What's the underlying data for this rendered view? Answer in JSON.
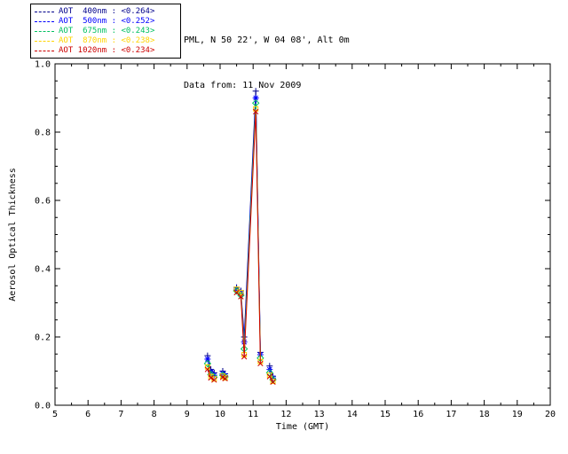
{
  "header": {
    "line1": "PML, N 50 22', W 04 08', Alt 0m",
    "line2": "Data from: 11 Nov 2009"
  },
  "chart_data": {
    "type": "line",
    "title": "",
    "xlabel": "Time (GMT)",
    "ylabel": "Aerosol Optical Thickness",
    "xlim": [
      5,
      20
    ],
    "ylim": [
      0.0,
      1.0
    ],
    "xticks": [
      5,
      6,
      7,
      8,
      9,
      10,
      11,
      12,
      13,
      14,
      15,
      16,
      17,
      18,
      19,
      20
    ],
    "yticks": [
      0.0,
      0.2,
      0.4,
      0.6,
      0.8,
      1.0
    ],
    "grid": false,
    "legend_position": "top-left",
    "x": [
      9.62,
      9.72,
      9.82,
      10.08,
      10.15,
      10.5,
      10.63,
      10.73,
      11.08,
      11.22,
      11.5,
      11.6
    ],
    "segments": [
      [
        0,
        2
      ],
      [
        3,
        4
      ],
      [
        5,
        9
      ],
      [
        10,
        11
      ]
    ],
    "series": [
      {
        "name": "AOT 400nm",
        "legend_label": "AOT  400nm : <0.264>",
        "mean": "<0.264>",
        "color": "#00008B",
        "marker": "plus",
        "values": [
          0.145,
          0.105,
          0.095,
          0.1,
          0.092,
          0.345,
          0.335,
          0.2,
          0.92,
          0.155,
          0.115,
          0.085
        ]
      },
      {
        "name": "AOT 500nm",
        "legend_label": "AOT  500nm : <0.252>",
        "mean": "<0.252>",
        "color": "#0000FF",
        "marker": "asterisk",
        "values": [
          0.135,
          0.098,
          0.088,
          0.093,
          0.087,
          0.34,
          0.328,
          0.185,
          0.9,
          0.148,
          0.105,
          0.08
        ]
      },
      {
        "name": "AOT 675nm",
        "legend_label": "AOT  675nm : <0.243>",
        "mean": "<0.243>",
        "color": "#00C060",
        "marker": "diamond",
        "values": [
          0.122,
          0.09,
          0.082,
          0.088,
          0.083,
          0.335,
          0.322,
          0.165,
          0.885,
          0.138,
          0.095,
          0.075
        ]
      },
      {
        "name": "AOT 870nm",
        "legend_label": "AOT  870nm : <0.238>",
        "mean": "<0.238>",
        "color": "#FFD400",
        "marker": "square",
        "values": [
          0.112,
          0.084,
          0.077,
          0.085,
          0.08,
          0.34,
          0.33,
          0.148,
          0.868,
          0.128,
          0.088,
          0.07
        ]
      },
      {
        "name": "AOT 1020nm",
        "legend_label": "AOT 1020nm : <0.234>",
        "mean": "<0.234>",
        "color": "#CC0000",
        "marker": "x",
        "values": [
          0.105,
          0.08,
          0.074,
          0.082,
          0.078,
          0.33,
          0.318,
          0.142,
          0.86,
          0.122,
          0.084,
          0.068
        ]
      }
    ]
  }
}
